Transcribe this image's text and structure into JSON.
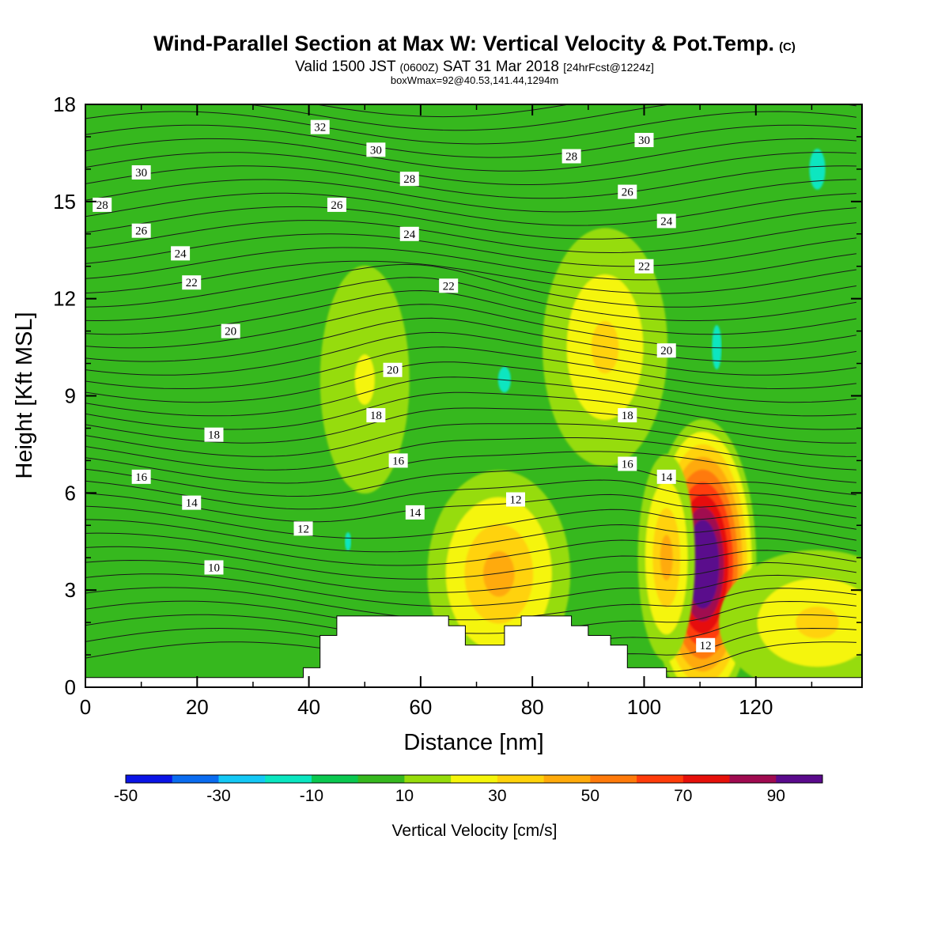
{
  "title": {
    "main": "Wind-Parallel Section at Max W: Vertical Velocity & Pot.Temp.",
    "copyright": "(C)",
    "valid_prefix": "Valid 1500 JST",
    "valid_utc": "(0600Z)",
    "valid_date": "SAT 31 Mar 2018",
    "forecast": "[24hrFcst@1224z]",
    "box_info": "boxWmax=92@40.53,141.44,1294m"
  },
  "chart_data": {
    "type": "heatmap",
    "xlabel": "Distance [nm]",
    "ylabel": "Height [Kft MSL]",
    "xlim": [
      0,
      139
    ],
    "ylim": [
      0,
      18
    ],
    "x_ticks": [
      0,
      20,
      40,
      60,
      80,
      100,
      120
    ],
    "y_ticks": [
      0,
      3,
      6,
      9,
      12,
      15,
      18
    ],
    "background_value_range": "0 to 10",
    "colorbar": {
      "title": "Vertical Velocity [cm/s]",
      "levels": [
        -50,
        -40,
        -30,
        -20,
        -10,
        0,
        10,
        20,
        30,
        40,
        50,
        60,
        70,
        80,
        90,
        100
      ],
      "tick_labels": [
        -50,
        -30,
        -10,
        10,
        30,
        50,
        70,
        90
      ],
      "colors": [
        "#0a14e6",
        "#0a6cf0",
        "#14c8f5",
        "#0ae6c0",
        "#0ac850",
        "#36b81e",
        "#96dc0a",
        "#f5f50a",
        "#ffd20a",
        "#ffaa0a",
        "#ff7a0a",
        "#ff3c0a",
        "#e6100a",
        "#a00a50",
        "#5a0a8c"
      ]
    },
    "velocity_features": [
      {
        "x": 110.5,
        "y": 3.8,
        "peak": 92
      },
      {
        "x": 74,
        "y": 3.5,
        "peak": 40
      },
      {
        "x": 93,
        "y": 10.5,
        "peak": 30
      },
      {
        "x": 104,
        "y": 4,
        "peak": 40
      },
      {
        "x": 131,
        "y": 2,
        "peak": 30
      },
      {
        "x": 50,
        "y": 9.5,
        "peak": 20
      },
      {
        "x": 75,
        "y": 9.5,
        "peak": -10
      },
      {
        "x": 113,
        "y": 10.5,
        "peak": -10
      },
      {
        "x": 131,
        "y": 16,
        "peak": -10
      },
      {
        "x": 47,
        "y": 4.5,
        "peak": -10
      }
    ],
    "terrain": [
      [
        0,
        0.3
      ],
      [
        39,
        0.3
      ],
      [
        39,
        0.6
      ],
      [
        42,
        0.6
      ],
      [
        42,
        1.6
      ],
      [
        45,
        1.6
      ],
      [
        45,
        2.2
      ],
      [
        65,
        2.2
      ],
      [
        65,
        1.9
      ],
      [
        68,
        1.9
      ],
      [
        68,
        1.3
      ],
      [
        75,
        1.3
      ],
      [
        75,
        1.9
      ],
      [
        78,
        1.9
      ],
      [
        78,
        2.2
      ],
      [
        87,
        2.2
      ],
      [
        87,
        1.9
      ],
      [
        90,
        1.9
      ],
      [
        90,
        1.6
      ],
      [
        94,
        1.6
      ],
      [
        94,
        1.3
      ],
      [
        97,
        1.3
      ],
      [
        97,
        0.6
      ],
      [
        104,
        0.6
      ],
      [
        104,
        0.3
      ],
      [
        139,
        0.3
      ]
    ],
    "theta_contour_labels": [
      {
        "x": 3,
        "y": 14.9,
        "text": "28"
      },
      {
        "x": 10,
        "y": 15.9,
        "text": "30"
      },
      {
        "x": 10,
        "y": 14.1,
        "text": "26"
      },
      {
        "x": 17,
        "y": 13.4,
        "text": "24"
      },
      {
        "x": 19,
        "y": 12.5,
        "text": "22"
      },
      {
        "x": 26,
        "y": 11.0,
        "text": "20"
      },
      {
        "x": 23,
        "y": 7.8,
        "text": "18"
      },
      {
        "x": 10,
        "y": 6.5,
        "text": "16"
      },
      {
        "x": 19,
        "y": 5.7,
        "text": "14"
      },
      {
        "x": 39,
        "y": 4.9,
        "text": "12"
      },
      {
        "x": 23,
        "y": 3.7,
        "text": "10"
      },
      {
        "x": 42,
        "y": 17.3,
        "text": "32"
      },
      {
        "x": 52,
        "y": 16.6,
        "text": "30"
      },
      {
        "x": 45,
        "y": 14.9,
        "text": "26"
      },
      {
        "x": 58,
        "y": 15.7,
        "text": "28"
      },
      {
        "x": 58,
        "y": 14.0,
        "text": "24"
      },
      {
        "x": 65,
        "y": 12.4,
        "text": "22"
      },
      {
        "x": 55,
        "y": 9.8,
        "text": "20"
      },
      {
        "x": 52,
        "y": 8.4,
        "text": "18"
      },
      {
        "x": 56,
        "y": 7.0,
        "text": "16"
      },
      {
        "x": 59,
        "y": 5.4,
        "text": "14"
      },
      {
        "x": 77,
        "y": 5.8,
        "text": "12"
      },
      {
        "x": 87,
        "y": 16.4,
        "text": "28"
      },
      {
        "x": 100,
        "y": 16.9,
        "text": "30"
      },
      {
        "x": 97,
        "y": 15.3,
        "text": "26"
      },
      {
        "x": 104,
        "y": 14.4,
        "text": "24"
      },
      {
        "x": 100,
        "y": 13.0,
        "text": "22"
      },
      {
        "x": 104,
        "y": 10.4,
        "text": "20"
      },
      {
        "x": 97,
        "y": 8.4,
        "text": "18"
      },
      {
        "x": 97,
        "y": 6.9,
        "text": "16"
      },
      {
        "x": 104,
        "y": 6.5,
        "text": "14"
      },
      {
        "x": 111,
        "y": 1.3,
        "text": "12"
      }
    ]
  }
}
